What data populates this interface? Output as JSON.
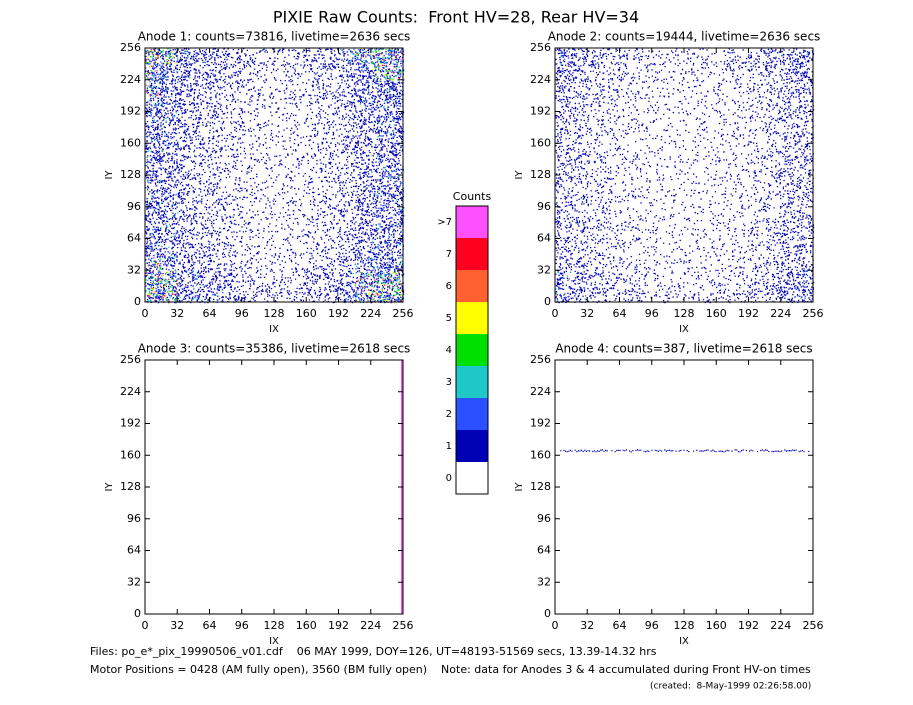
{
  "title": "PIXIE Raw Counts:  Front HV=28, Rear HV=34",
  "footer": [
    "Files: po_e*_pix_19990506_v01.cdf    06 MAY 1999, DOY=126, UT=48193-51569 secs, 13.39-14.32 hrs",
    "Motor Positions = 0428 (AM fully open), 3560 (BM fully open)    Note: data for Anodes 3 & 4 accumulated during Front HV-on times",
    "(created:  8-May-1999 02:26:58.00)"
  ],
  "colorbar": {
    "title": "Counts",
    "labels": [
      "0",
      "1",
      "2",
      "3",
      "4",
      "5",
      "6",
      "7",
      ">7"
    ],
    "colors": [
      "#ffffff",
      "#0000b4",
      "#2a50ff",
      "#1ec8c8",
      "#00e000",
      "#ffff00",
      "#ff6030",
      "#ff0020",
      "#ff50ff"
    ]
  },
  "chart_data": [
    {
      "type": "heatmap",
      "title": "Anode 1: counts=73816, livetime=2636 secs",
      "xlabel": "IX",
      "ylabel": "IY",
      "xlim": [
        0,
        256
      ],
      "ylim": [
        0,
        256
      ],
      "xticks": [
        0,
        32,
        64,
        96,
        128,
        160,
        192,
        224,
        256
      ],
      "yticks": [
        0,
        32,
        64,
        96,
        128,
        160,
        192,
        224,
        256
      ],
      "x_profile": [
        0.95,
        0.75,
        0.55,
        0.45,
        0.4,
        0.32,
        0.25,
        0.2,
        0.2,
        0.22,
        0.3,
        0.35,
        0.45,
        0.7,
        0.8,
        0.9
      ],
      "y_profile": [
        0.9,
        0.8,
        0.6,
        0.5,
        0.5,
        0.5,
        0.5,
        0.45,
        0.45,
        0.5,
        0.5,
        0.5,
        0.55,
        0.6,
        0.7,
        0.85
      ]
    },
    {
      "type": "heatmap",
      "title": "Anode 2: counts=19444, livetime=2636 secs",
      "xlabel": "IX",
      "ylabel": "IY",
      "xlim": [
        0,
        256
      ],
      "ylim": [
        0,
        256
      ],
      "xticks": [
        0,
        32,
        64,
        96,
        128,
        160,
        192,
        224,
        256
      ],
      "yticks": [
        0,
        32,
        64,
        96,
        128,
        160,
        192,
        224,
        256
      ],
      "x_profile": [
        0.5,
        0.4,
        0.3,
        0.25,
        0.2,
        0.18,
        0.15,
        0.15,
        0.15,
        0.15,
        0.18,
        0.2,
        0.25,
        0.35,
        0.45,
        0.5
      ],
      "y_profile": [
        0.9,
        0.75,
        0.6,
        0.55,
        0.55,
        0.5,
        0.5,
        0.5,
        0.5,
        0.5,
        0.5,
        0.5,
        0.55,
        0.6,
        0.7,
        0.85
      ]
    },
    {
      "type": "heatmap",
      "title": "Anode 3: counts=35386, livetime=2618 secs",
      "xlabel": "IX",
      "ylabel": "IY",
      "xlim": [
        0,
        256
      ],
      "ylim": [
        0,
        256
      ],
      "xticks": [
        0,
        32,
        64,
        96,
        128,
        160,
        192,
        224,
        256
      ],
      "yticks": [
        0,
        32,
        64,
        96,
        128,
        160,
        192,
        224,
        256
      ],
      "stripe_x": 255
    },
    {
      "type": "heatmap",
      "title": "Anode 4: counts=387, livetime=2618 secs",
      "xlabel": "IX",
      "ylabel": "IY",
      "xlim": [
        0,
        256
      ],
      "ylim": [
        0,
        256
      ],
      "xticks": [
        0,
        32,
        64,
        96,
        128,
        160,
        192,
        224,
        256
      ],
      "yticks": [
        0,
        32,
        64,
        96,
        128,
        160,
        192,
        224,
        256
      ],
      "line_y": 165
    }
  ]
}
